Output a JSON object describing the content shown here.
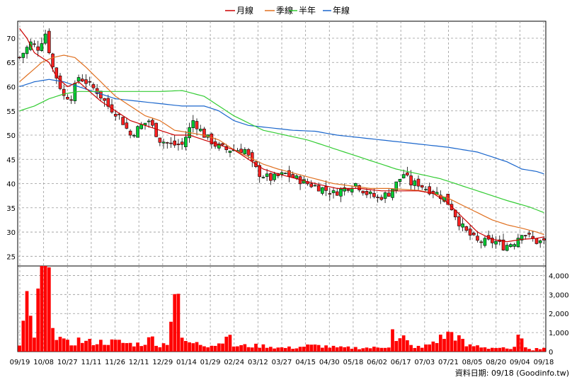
{
  "chart_data": {
    "type": "candlestick",
    "legend": [
      {
        "label": "月線",
        "color": "#cc0000"
      },
      {
        "label": "季線",
        "color": "#e07020"
      },
      {
        "label": "半年",
        "color": "#33cc33"
      },
      {
        "label": "年線",
        "color": "#1a66cc"
      }
    ],
    "price_axis": {
      "ylim": [
        23,
        73.5
      ],
      "ticks": [
        25,
        30,
        35,
        40,
        45,
        50,
        55,
        60,
        65,
        70
      ],
      "grid": true
    },
    "volume_axis": {
      "ylim": [
        0,
        4500
      ],
      "ticks": [
        0,
        1000,
        2000,
        3000,
        4000
      ],
      "tick_labels": [
        "0",
        "1,000",
        "2,000",
        "3,000",
        "4,000"
      ]
    },
    "x_labels": [
      "09/19",
      "10/08",
      "10/27",
      "11/11",
      "11/26",
      "12/11",
      "12/29",
      "01/14",
      "01/29",
      "02/24",
      "03/12",
      "03/27",
      "04/15",
      "04/30",
      "05/18",
      "06/02",
      "06/17",
      "07/03",
      "07/21",
      "08/05",
      "08/20",
      "09/04",
      "09/18"
    ],
    "source_label": "資料日期: 09/18 (Goodinfo.tw)",
    "closing_price_anchors": [
      [
        0,
        66
      ],
      [
        3,
        69
      ],
      [
        5,
        68
      ],
      [
        7,
        71
      ],
      [
        9,
        64
      ],
      [
        12,
        58
      ],
      [
        14,
        58
      ],
      [
        16,
        62
      ],
      [
        18,
        61
      ],
      [
        21,
        59
      ],
      [
        24,
        56
      ],
      [
        27,
        54
      ],
      [
        30,
        50
      ],
      [
        33,
        52
      ],
      [
        35,
        53
      ],
      [
        38,
        49
      ],
      [
        41,
        48
      ],
      [
        44,
        48
      ],
      [
        47,
        53
      ],
      [
        50,
        50
      ],
      [
        53,
        48
      ],
      [
        56,
        47
      ],
      [
        59,
        47
      ],
      [
        61,
        47
      ],
      [
        63,
        44
      ],
      [
        65,
        42
      ],
      [
        68,
        41
      ],
      [
        72,
        42
      ],
      [
        75,
        41
      ],
      [
        78,
        40
      ],
      [
        82,
        39
      ],
      [
        85,
        38
      ],
      [
        88,
        39
      ],
      [
        91,
        40
      ],
      [
        94,
        38
      ],
      [
        97,
        37
      ],
      [
        100,
        38
      ],
      [
        102,
        40
      ],
      [
        104,
        42
      ],
      [
        106,
        40
      ],
      [
        108,
        40
      ],
      [
        110,
        39
      ],
      [
        113,
        38
      ],
      [
        115,
        37
      ],
      [
        117,
        35
      ],
      [
        119,
        32
      ],
      [
        121,
        30
      ],
      [
        124,
        28
      ],
      [
        127,
        28
      ],
      [
        129,
        28
      ],
      [
        131,
        27
      ],
      [
        134,
        28
      ],
      [
        136,
        30
      ],
      [
        138,
        29
      ],
      [
        140,
        28
      ],
      [
        142,
        28
      ]
    ],
    "volume_anchors": [
      [
        0,
        300
      ],
      [
        2,
        2400
      ],
      [
        4,
        800
      ],
      [
        6,
        4300
      ],
      [
        7,
        4200
      ],
      [
        8,
        3200
      ],
      [
        10,
        900
      ],
      [
        12,
        500
      ],
      [
        14,
        400
      ],
      [
        16,
        600
      ],
      [
        18,
        500
      ],
      [
        21,
        500
      ],
      [
        24,
        500
      ],
      [
        27,
        500
      ],
      [
        30,
        400
      ],
      [
        33,
        400
      ],
      [
        36,
        700
      ],
      [
        38,
        300
      ],
      [
        40,
        500
      ],
      [
        42,
        3200
      ],
      [
        43,
        2300
      ],
      [
        44,
        700
      ],
      [
        46,
        400
      ],
      [
        48,
        600
      ],
      [
        51,
        300
      ],
      [
        54,
        400
      ],
      [
        56,
        1000
      ],
      [
        58,
        300
      ],
      [
        61,
        300
      ],
      [
        64,
        300
      ],
      [
        67,
        300
      ],
      [
        70,
        200
      ],
      [
        74,
        200
      ],
      [
        78,
        300
      ],
      [
        82,
        300
      ],
      [
        86,
        200
      ],
      [
        90,
        200
      ],
      [
        94,
        200
      ],
      [
        97,
        200
      ],
      [
        100,
        300
      ],
      [
        101,
        1400
      ],
      [
        102,
        500
      ],
      [
        104,
        700
      ],
      [
        106,
        300
      ],
      [
        109,
        200
      ],
      [
        112,
        500
      ],
      [
        115,
        800
      ],
      [
        117,
        1000
      ],
      [
        119,
        700
      ],
      [
        121,
        300
      ],
      [
        124,
        300
      ],
      [
        127,
        200
      ],
      [
        130,
        200
      ],
      [
        133,
        100
      ],
      [
        135,
        700
      ],
      [
        137,
        300
      ],
      [
        139,
        100
      ],
      [
        141,
        200
      ],
      [
        142,
        200
      ]
    ],
    "month_line_anchors": [
      [
        0,
        72
      ],
      [
        2,
        70
      ],
      [
        4,
        67
      ],
      [
        6,
        66
      ],
      [
        8,
        65
      ],
      [
        10,
        62
      ],
      [
        13,
        60
      ],
      [
        16,
        61
      ],
      [
        19,
        59
      ],
      [
        22,
        57
      ],
      [
        26,
        55
      ],
      [
        30,
        53
      ],
      [
        34,
        52
      ],
      [
        38,
        51
      ],
      [
        42,
        50
      ],
      [
        46,
        50
      ],
      [
        50,
        49
      ],
      [
        54,
        48
      ],
      [
        58,
        47
      ],
      [
        62,
        45
      ],
      [
        66,
        43
      ],
      [
        70,
        42
      ],
      [
        75,
        41
      ],
      [
        80,
        40
      ],
      [
        86,
        39
      ],
      [
        92,
        39
      ],
      [
        98,
        38.5
      ],
      [
        104,
        38.5
      ],
      [
        108,
        38.5
      ],
      [
        112,
        38
      ],
      [
        116,
        36
      ],
      [
        120,
        33
      ],
      [
        124,
        30
      ],
      [
        128,
        28.5
      ],
      [
        132,
        28
      ],
      [
        136,
        28.5
      ],
      [
        140,
        28.7
      ],
      [
        142,
        29
      ]
    ],
    "quarter_line_anchors": [
      [
        0,
        61
      ],
      [
        3,
        63
      ],
      [
        6,
        65
      ],
      [
        9,
        66
      ],
      [
        12,
        66.5
      ],
      [
        15,
        66
      ],
      [
        18,
        64
      ],
      [
        22,
        61
      ],
      [
        26,
        58
      ],
      [
        30,
        56
      ],
      [
        34,
        54
      ],
      [
        38,
        53
      ],
      [
        42,
        51
      ],
      [
        46,
        50.5
      ],
      [
        50,
        50
      ],
      [
        54,
        49
      ],
      [
        58,
        47
      ],
      [
        62,
        45.5
      ],
      [
        66,
        44
      ],
      [
        70,
        43
      ],
      [
        75,
        42
      ],
      [
        80,
        41
      ],
      [
        85,
        40
      ],
      [
        90,
        39.5
      ],
      [
        95,
        39
      ],
      [
        100,
        39
      ],
      [
        104,
        38.8
      ],
      [
        108,
        38.6
      ],
      [
        112,
        38
      ],
      [
        116,
        37
      ],
      [
        120,
        35.5
      ],
      [
        124,
        34
      ],
      [
        128,
        32.5
      ],
      [
        132,
        31.5
      ],
      [
        136,
        30.8
      ],
      [
        140,
        30
      ],
      [
        142,
        29.5
      ]
    ],
    "half_year_line_anchors": [
      [
        0,
        55
      ],
      [
        4,
        56
      ],
      [
        8,
        57.5
      ],
      [
        12,
        58.5
      ],
      [
        16,
        59
      ],
      [
        20,
        59
      ],
      [
        26,
        59
      ],
      [
        32,
        59
      ],
      [
        38,
        59
      ],
      [
        44,
        59.2
      ],
      [
        50,
        58
      ],
      [
        54,
        56
      ],
      [
        58,
        54
      ],
      [
        62,
        52.5
      ],
      [
        66,
        51
      ],
      [
        72,
        50
      ],
      [
        78,
        49
      ],
      [
        84,
        47.5
      ],
      [
        90,
        46
      ],
      [
        96,
        44.5
      ],
      [
        102,
        43
      ],
      [
        108,
        42
      ],
      [
        114,
        41
      ],
      [
        120,
        39.5
      ],
      [
        126,
        38
      ],
      [
        132,
        36.5
      ],
      [
        138,
        35.2
      ],
      [
        142,
        34
      ]
    ],
    "year_line_anchors": [
      [
        0,
        60
      ],
      [
        4,
        61
      ],
      [
        8,
        61.5
      ],
      [
        12,
        61
      ],
      [
        16,
        60
      ],
      [
        20,
        59
      ],
      [
        26,
        57.5
      ],
      [
        32,
        57
      ],
      [
        38,
        56.5
      ],
      [
        44,
        56
      ],
      [
        50,
        56
      ],
      [
        54,
        55
      ],
      [
        58,
        53
      ],
      [
        62,
        52
      ],
      [
        68,
        51.5
      ],
      [
        74,
        51
      ],
      [
        80,
        50.8
      ],
      [
        86,
        50
      ],
      [
        92,
        49.5
      ],
      [
        98,
        49
      ],
      [
        104,
        48.5
      ],
      [
        110,
        48
      ],
      [
        116,
        47.5
      ],
      [
        120,
        47
      ],
      [
        124,
        46.5
      ],
      [
        128,
        45.5
      ],
      [
        132,
        44.5
      ],
      [
        136,
        43
      ],
      [
        140,
        42.5
      ],
      [
        142,
        42
      ]
    ]
  }
}
